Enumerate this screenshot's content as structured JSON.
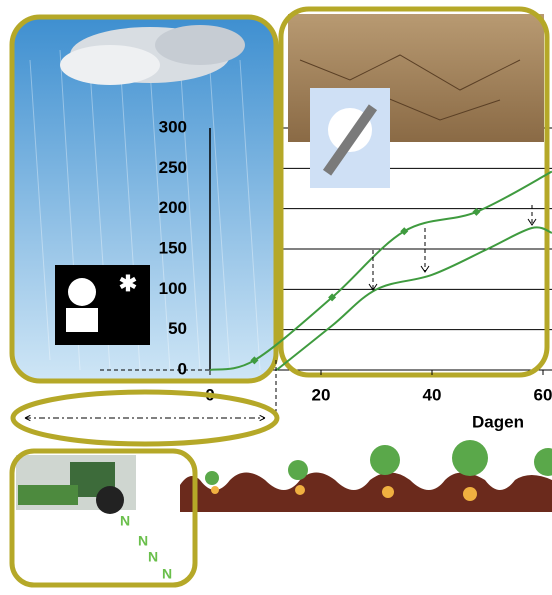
{
  "chart_data": {
    "type": "line",
    "x_label": "Dagen",
    "xlim": [
      0,
      61.6
    ],
    "xticks": [
      0,
      20,
      40,
      60
    ],
    "ylim": [
      0,
      300
    ],
    "yticks": [
      0,
      50,
      100,
      150,
      200,
      250,
      300
    ],
    "grid": true,
    "series": [
      {
        "color": "#3f9b3f",
        "x": [
          0,
          8,
          22,
          35,
          48,
          61.6
        ],
        "values": [
          0,
          12,
          90,
          172,
          196,
          246
        ],
        "markers": true
      },
      {
        "color": "#3f9b3f",
        "x": [
          12,
          22,
          30,
          40,
          50,
          58,
          61.6
        ],
        "values": [
          0,
          55,
          100,
          118,
          150,
          176,
          170
        ],
        "markers": false
      }
    ],
    "annotations": [
      "N",
      "N",
      "N",
      "N"
    ]
  }
}
